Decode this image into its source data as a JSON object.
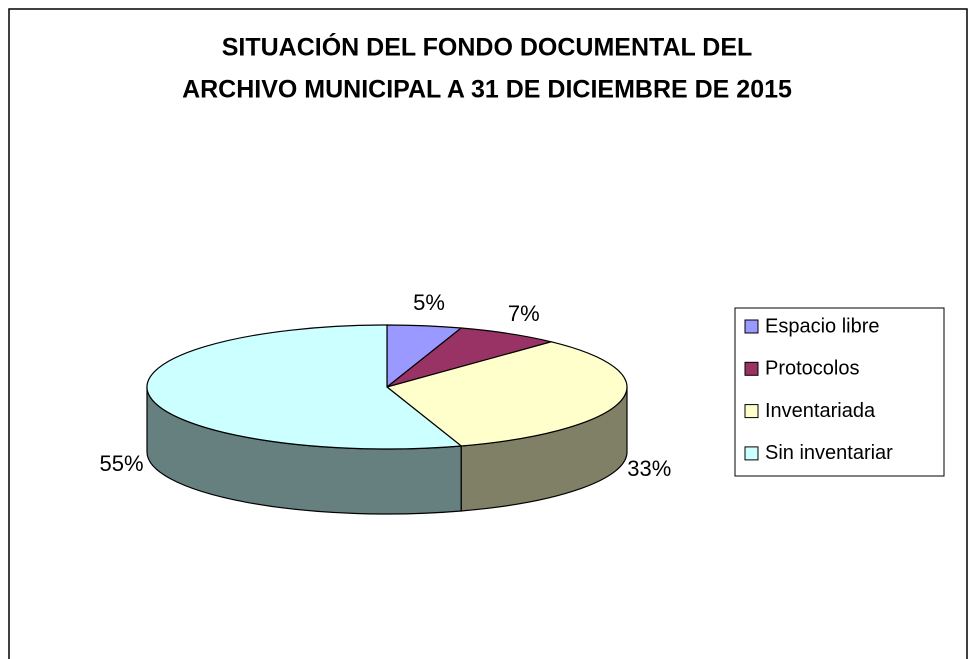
{
  "chart_data": {
    "type": "pie",
    "title": [
      "SITUACIÓN DEL FONDO DOCUMENTAL DEL",
      "ARCHIVO MUNICIPAL A 31 DE DICIEMBRE DE 2015"
    ],
    "categories": [
      "Espacio libre",
      "Protocolos",
      "Inventariada",
      "Sin inventariar"
    ],
    "values": [
      5,
      7,
      33,
      55
    ],
    "value_labels": [
      "5%",
      "7%",
      "33%",
      "55%"
    ],
    "colors": [
      "#9999ff",
      "#993366",
      "#ffffcc",
      "#ccffff"
    ],
    "legend": "right"
  }
}
